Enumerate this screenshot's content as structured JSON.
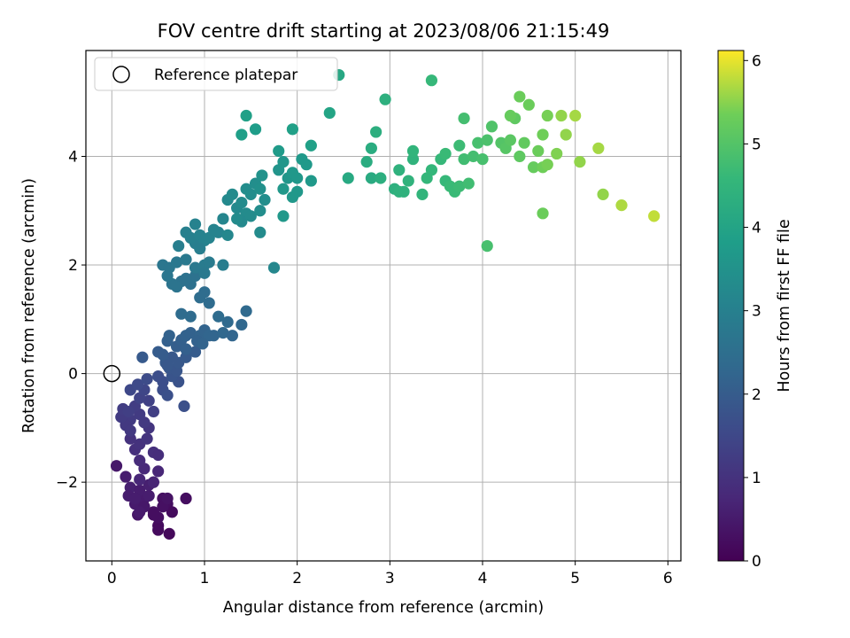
{
  "chart_data": {
    "type": "scatter",
    "title": "FOV centre drift starting at 2023/08/06 21:15:49",
    "xlabel": "Angular distance from reference (arcmin)",
    "ylabel": "Rotation from reference (arcmin)",
    "xlim": [
      -0.28,
      6.14
    ],
    "ylim": [
      -3.45,
      5.95
    ],
    "xticks": [
      "0",
      "1",
      "2",
      "3",
      "4",
      "5",
      "6"
    ],
    "yticks": [
      "−2",
      "0",
      "2",
      "4"
    ],
    "xtick_values": [
      0,
      1,
      2,
      3,
      4,
      5,
      6
    ],
    "ytick_values": [
      -2,
      0,
      2,
      4
    ],
    "grid": true,
    "colormap": "viridis",
    "colorbar": {
      "label": "Hours from first FF file",
      "range": [
        0,
        6.12
      ],
      "ticks": [
        "0",
        "1",
        "2",
        "3",
        "4",
        "5",
        "6"
      ],
      "tick_values": [
        0,
        1,
        2,
        3,
        4,
        5,
        6
      ]
    },
    "legend": {
      "entries": [
        "Reference platepar"
      ],
      "position": "top-left"
    },
    "reference_point": {
      "x": 0,
      "y": 0
    },
    "points": [
      [
        0.05,
        -1.7,
        0.45
      ],
      [
        0.15,
        -1.9,
        0.55
      ],
      [
        0.2,
        -2.1,
        0.6
      ],
      [
        0.18,
        -2.25,
        0.55
      ],
      [
        0.25,
        -2.4,
        0.5
      ],
      [
        0.28,
        -2.6,
        0.4
      ],
      [
        0.35,
        -2.3,
        0.5
      ],
      [
        0.3,
        -2.15,
        0.55
      ],
      [
        0.4,
        -2.05,
        0.6
      ],
      [
        0.45,
        -2.55,
        0.3
      ],
      [
        0.5,
        -2.8,
        0.2
      ],
      [
        0.5,
        -2.65,
        0.25
      ],
      [
        0.55,
        -2.3,
        0.3
      ],
      [
        0.6,
        -2.4,
        0.25
      ],
      [
        0.65,
        -2.55,
        0.2
      ],
      [
        0.62,
        -2.95,
        0.15
      ],
      [
        0.55,
        -2.45,
        0.3
      ],
      [
        0.5,
        -2.88,
        0.2
      ],
      [
        0.45,
        -2.6,
        0.25
      ],
      [
        0.6,
        -2.3,
        0.35
      ],
      [
        0.8,
        -2.3,
        0.25
      ],
      [
        0.35,
        -2.45,
        0.45
      ],
      [
        0.25,
        -2.3,
        0.55
      ],
      [
        0.3,
        -2.55,
        0.5
      ],
      [
        0.4,
        -2.25,
        0.55
      ],
      [
        0.3,
        -1.95,
        0.75
      ],
      [
        0.35,
        -1.75,
        0.8
      ],
      [
        0.45,
        -2.0,
        0.7
      ],
      [
        0.5,
        -1.8,
        0.75
      ],
      [
        0.3,
        -1.6,
        0.85
      ],
      [
        0.25,
        -1.4,
        0.95
      ],
      [
        0.2,
        -1.2,
        1.0
      ],
      [
        0.3,
        -1.3,
        1.0
      ],
      [
        0.38,
        -1.2,
        1.05
      ],
      [
        0.4,
        -1.0,
        1.1
      ],
      [
        0.35,
        -0.9,
        1.15
      ],
      [
        0.3,
        -0.75,
        1.2
      ],
      [
        0.25,
        -0.6,
        1.25
      ],
      [
        0.2,
        -0.85,
        1.2
      ],
      [
        0.15,
        -0.95,
        1.15
      ],
      [
        0.1,
        -0.8,
        1.2
      ],
      [
        0.12,
        -0.65,
        1.25
      ],
      [
        0.18,
        -0.7,
        1.3
      ],
      [
        0.2,
        -1.05,
        1.15
      ],
      [
        0.45,
        -0.7,
        1.3
      ],
      [
        0.4,
        -0.5,
        1.35
      ],
      [
        0.45,
        -1.45,
        0.95
      ],
      [
        0.5,
        -1.5,
        0.9
      ],
      [
        0.3,
        -0.45,
        1.4
      ],
      [
        0.35,
        -0.3,
        1.45
      ],
      [
        0.2,
        -0.3,
        1.5
      ],
      [
        0.28,
        -0.2,
        1.55
      ],
      [
        0.38,
        -0.1,
        1.6
      ],
      [
        0.5,
        -0.05,
        1.65
      ],
      [
        0.55,
        -0.15,
        1.65
      ],
      [
        0.55,
        -0.3,
        1.65
      ],
      [
        0.6,
        -0.4,
        1.7
      ],
      [
        0.72,
        -0.15,
        1.75
      ],
      [
        0.78,
        -0.6,
        1.7
      ],
      [
        0.65,
        -0.05,
        1.8
      ],
      [
        0.62,
        0.1,
        1.85
      ],
      [
        0.7,
        0.05,
        1.85
      ],
      [
        0.72,
        0.2,
        1.9
      ],
      [
        0.8,
        0.3,
        1.95
      ],
      [
        0.9,
        0.4,
        2.0
      ],
      [
        0.65,
        0.3,
        1.9
      ],
      [
        0.58,
        0.2,
        1.95
      ],
      [
        0.5,
        0.4,
        2.0
      ],
      [
        0.55,
        0.35,
        2.0
      ],
      [
        0.6,
        0.15,
        1.9
      ],
      [
        0.33,
        0.3,
        1.95
      ],
      [
        0.7,
        0.5,
        2.05
      ],
      [
        0.75,
        0.62,
        2.1
      ],
      [
        0.8,
        0.7,
        2.15
      ],
      [
        0.85,
        0.75,
        2.15
      ],
      [
        0.95,
        0.7,
        2.2
      ],
      [
        1.0,
        0.8,
        2.2
      ],
      [
        1.05,
        0.7,
        2.25
      ],
      [
        1.1,
        0.7,
        2.25
      ],
      [
        1.2,
        0.75,
        2.3
      ],
      [
        1.3,
        0.7,
        2.25
      ],
      [
        1.4,
        0.9,
        2.3
      ],
      [
        1.45,
        1.15,
        2.35
      ],
      [
        1.25,
        0.95,
        2.35
      ],
      [
        1.15,
        1.05,
        2.4
      ],
      [
        1.05,
        1.3,
        2.4
      ],
      [
        0.95,
        1.4,
        2.45
      ],
      [
        1.0,
        1.5,
        2.45
      ],
      [
        0.85,
        1.05,
        2.4
      ],
      [
        0.75,
        1.1,
        2.4
      ],
      [
        0.6,
        0.6,
        2.1
      ],
      [
        0.62,
        0.7,
        2.15
      ],
      [
        0.8,
        0.45,
        2.1
      ],
      [
        0.92,
        0.6,
        2.15
      ],
      [
        0.98,
        0.55,
        2.2
      ],
      [
        0.85,
        1.65,
        2.55
      ],
      [
        0.9,
        1.8,
        2.6
      ],
      [
        0.8,
        1.75,
        2.6
      ],
      [
        0.75,
        1.7,
        2.6
      ],
      [
        0.7,
        1.6,
        2.65
      ],
      [
        0.65,
        1.65,
        2.65
      ],
      [
        0.6,
        1.8,
        2.7
      ],
      [
        0.55,
        2.0,
        2.7
      ],
      [
        0.62,
        1.95,
        2.7
      ],
      [
        0.7,
        2.05,
        2.75
      ],
      [
        0.8,
        2.1,
        2.8
      ],
      [
        0.9,
        1.95,
        2.8
      ],
      [
        1.0,
        2.0,
        2.85
      ],
      [
        1.05,
        2.05,
        2.85
      ],
      [
        1.0,
        1.85,
        2.8
      ],
      [
        1.2,
        2.0,
        2.9
      ],
      [
        0.9,
        2.4,
        2.95
      ],
      [
        0.85,
        2.5,
        3.0
      ],
      [
        0.8,
        2.6,
        3.0
      ],
      [
        0.9,
        2.75,
        3.05
      ],
      [
        0.95,
        2.55,
        3.05
      ],
      [
        1.0,
        2.45,
        3.05
      ],
      [
        1.05,
        2.5,
        3.1
      ],
      [
        1.1,
        2.65,
        3.1
      ],
      [
        1.15,
        2.6,
        3.1
      ],
      [
        1.2,
        2.85,
        3.15
      ],
      [
        1.25,
        3.2,
        3.25
      ],
      [
        1.3,
        3.3,
        3.3
      ],
      [
        1.35,
        3.05,
        3.25
      ],
      [
        1.4,
        3.15,
        3.3
      ],
      [
        1.45,
        3.4,
        3.35
      ],
      [
        1.5,
        3.3,
        3.35
      ],
      [
        1.55,
        3.5,
        3.4
      ],
      [
        1.6,
        3.4,
        3.45
      ],
      [
        1.45,
        2.95,
        3.3
      ],
      [
        1.4,
        2.8,
        3.25
      ],
      [
        1.5,
        2.9,
        3.3
      ],
      [
        1.6,
        3.0,
        3.35
      ],
      [
        1.65,
        3.2,
        3.4
      ],
      [
        1.35,
        2.85,
        3.3
      ],
      [
        1.25,
        2.55,
        3.2
      ],
      [
        1.6,
        2.6,
        3.3
      ],
      [
        1.75,
        1.95,
        3.2
      ],
      [
        0.72,
        2.35,
        2.95
      ],
      [
        0.95,
        2.3,
        2.95
      ],
      [
        1.62,
        3.65,
        3.5
      ],
      [
        1.8,
        3.75,
        3.55
      ],
      [
        1.85,
        3.9,
        3.6
      ],
      [
        1.9,
        3.6,
        3.6
      ],
      [
        1.95,
        3.7,
        3.65
      ],
      [
        2.0,
        3.6,
        3.65
      ],
      [
        2.05,
        3.95,
        3.7
      ],
      [
        2.1,
        3.85,
        3.7
      ],
      [
        2.15,
        3.55,
        3.7
      ],
      [
        2.0,
        3.35,
        3.65
      ],
      [
        1.95,
        3.25,
        3.65
      ],
      [
        1.85,
        3.4,
        3.65
      ],
      [
        1.8,
        4.1,
        3.75
      ],
      [
        1.85,
        2.9,
        3.65
      ],
      [
        1.55,
        4.5,
        3.8
      ],
      [
        1.4,
        4.4,
        3.85
      ],
      [
        1.45,
        4.75,
        3.9
      ],
      [
        1.95,
        4.5,
        3.9
      ],
      [
        2.15,
        4.2,
        3.9
      ],
      [
        2.35,
        4.8,
        4.0
      ],
      [
        2.45,
        5.5,
        4.1
      ],
      [
        2.55,
        3.6,
        4.15
      ],
      [
        2.8,
        3.6,
        4.2
      ],
      [
        2.75,
        3.9,
        4.25
      ],
      [
        2.8,
        4.15,
        4.25
      ],
      [
        2.85,
        4.45,
        4.3
      ],
      [
        2.9,
        3.6,
        4.3
      ],
      [
        2.95,
        5.05,
        4.35
      ],
      [
        3.05,
        3.4,
        4.35
      ],
      [
        3.1,
        3.35,
        4.4
      ],
      [
        3.15,
        3.35,
        4.4
      ],
      [
        3.1,
        3.75,
        4.4
      ],
      [
        3.2,
        3.55,
        4.45
      ],
      [
        3.25,
        3.95,
        4.45
      ],
      [
        3.25,
        4.1,
        4.5
      ],
      [
        3.35,
        3.3,
        4.5
      ],
      [
        3.4,
        3.6,
        4.55
      ],
      [
        3.45,
        3.75,
        4.55
      ],
      [
        3.45,
        5.4,
        4.6
      ],
      [
        3.55,
        3.95,
        4.6
      ],
      [
        3.6,
        4.05,
        4.65
      ],
      [
        3.6,
        3.55,
        4.6
      ],
      [
        3.65,
        3.45,
        4.65
      ],
      [
        3.7,
        3.35,
        4.65
      ],
      [
        3.75,
        3.45,
        4.7
      ],
      [
        3.75,
        4.2,
        4.7
      ],
      [
        3.8,
        3.95,
        4.75
      ],
      [
        3.8,
        4.7,
        4.8
      ],
      [
        3.85,
        3.5,
        4.75
      ],
      [
        3.9,
        4.0,
        4.8
      ],
      [
        3.95,
        4.25,
        4.85
      ],
      [
        4.0,
        3.95,
        4.85
      ],
      [
        4.05,
        4.3,
        4.9
      ],
      [
        4.1,
        4.55,
        4.95
      ],
      [
        4.05,
        2.35,
        4.85
      ],
      [
        4.2,
        4.25,
        5.0
      ],
      [
        4.25,
        4.15,
        5.05
      ],
      [
        4.3,
        4.3,
        5.1
      ],
      [
        4.35,
        4.7,
        5.15
      ],
      [
        4.4,
        4.0,
        5.15
      ],
      [
        4.45,
        4.25,
        5.2
      ],
      [
        4.4,
        5.1,
        5.3
      ],
      [
        4.5,
        4.95,
        5.3
      ],
      [
        4.55,
        3.8,
        5.25
      ],
      [
        4.6,
        4.1,
        5.3
      ],
      [
        4.65,
        4.4,
        5.35
      ],
      [
        4.7,
        4.75,
        5.4
      ],
      [
        4.65,
        3.8,
        5.35
      ],
      [
        4.7,
        3.85,
        5.4
      ],
      [
        4.8,
        4.05,
        5.45
      ],
      [
        4.85,
        4.75,
        5.55
      ],
      [
        4.9,
        4.4,
        5.55
      ],
      [
        5.0,
        4.75,
        5.65
      ],
      [
        5.05,
        3.9,
        5.55
      ],
      [
        5.25,
        4.15,
        5.65
      ],
      [
        5.3,
        3.3,
        5.55
      ],
      [
        5.5,
        3.1,
        5.7
      ],
      [
        5.85,
        2.9,
        5.8
      ],
      [
        4.65,
        2.95,
        5.3
      ],
      [
        4.3,
        4.75,
        5.25
      ]
    ]
  }
}
